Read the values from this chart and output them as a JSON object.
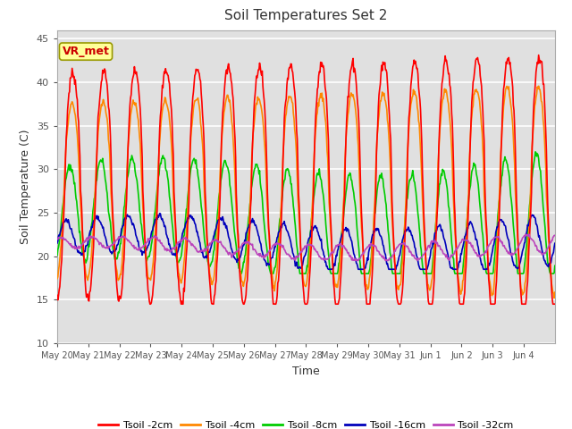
{
  "title": "Soil Temperatures Set 2",
  "xlabel": "Time",
  "ylabel": "Soil Temperature (C)",
  "ylim": [
    10,
    46
  ],
  "yticks": [
    10,
    15,
    20,
    25,
    30,
    35,
    40,
    45
  ],
  "plot_bg": "#e0e0e0",
  "fig_bg": "#ffffff",
  "series_colors": [
    "#ff0000",
    "#ff8800",
    "#00cc00",
    "#0000bb",
    "#bb44bb"
  ],
  "series_labels": [
    "Tsoil -2cm",
    "Tsoil -4cm",
    "Tsoil -8cm",
    "Tsoil -16cm",
    "Tsoil -32cm"
  ],
  "annotation_text": "VR_met",
  "annotation_color": "#cc0000",
  "annotation_bg": "#ffff99",
  "annotation_border": "#999900",
  "num_days": 16,
  "x_tick_labels": [
    "May 20",
    "May 21",
    "May 22",
    "May 23",
    "May 24",
    "May 25",
    "May 26",
    "May 27",
    "May 28",
    "May 29",
    "May 30",
    "May 31",
    "Jun 1",
    "Jun 2",
    "Jun 3",
    "Jun 4"
  ],
  "grid_color": "#ffffff",
  "line_width": 1.2
}
